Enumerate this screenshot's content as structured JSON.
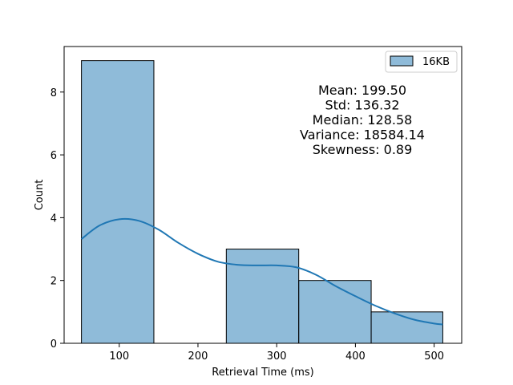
{
  "chart_data": {
    "type": "bar",
    "title": "",
    "xlabel": "Retrieval Time (ms)",
    "ylabel": "Count",
    "xlim": [
      30,
      535
    ],
    "ylim": [
      0,
      9.45
    ],
    "xticks": [
      100,
      200,
      300,
      400,
      500
    ],
    "yticks": [
      0,
      2,
      4,
      6,
      8
    ],
    "grid": false,
    "legend_position": "top-right",
    "series": [
      {
        "name": "16KB",
        "color": "#1f77b4",
        "bins": [
          {
            "x0": 52,
            "x1": 144,
            "value": 9
          },
          {
            "x0": 144,
            "x1": 236,
            "value": 0
          },
          {
            "x0": 236,
            "x1": 328,
            "value": 3
          },
          {
            "x0": 328,
            "x1": 420,
            "value": 2
          },
          {
            "x0": 420,
            "x1": 511,
            "value": 1
          }
        ],
        "kde": [
          {
            "x": 52,
            "y": 3.32
          },
          {
            "x": 75,
            "y": 3.75
          },
          {
            "x": 100,
            "y": 3.95
          },
          {
            "x": 125,
            "y": 3.9
          },
          {
            "x": 150,
            "y": 3.62
          },
          {
            "x": 175,
            "y": 3.2
          },
          {
            "x": 200,
            "y": 2.85
          },
          {
            "x": 225,
            "y": 2.6
          },
          {
            "x": 250,
            "y": 2.5
          },
          {
            "x": 275,
            "y": 2.48
          },
          {
            "x": 300,
            "y": 2.48
          },
          {
            "x": 325,
            "y": 2.42
          },
          {
            "x": 350,
            "y": 2.18
          },
          {
            "x": 375,
            "y": 1.82
          },
          {
            "x": 400,
            "y": 1.5
          },
          {
            "x": 425,
            "y": 1.2
          },
          {
            "x": 450,
            "y": 0.95
          },
          {
            "x": 475,
            "y": 0.75
          },
          {
            "x": 500,
            "y": 0.63
          },
          {
            "x": 511,
            "y": 0.6
          }
        ]
      }
    ],
    "annotations": [
      "Mean: 199.50",
      "Std: 136.32",
      "Median: 128.58",
      "Variance: 18584.14",
      "Skewness: 0.89"
    ]
  }
}
